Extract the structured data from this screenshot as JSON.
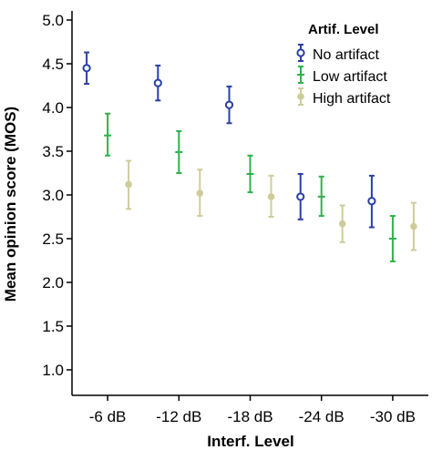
{
  "chart_data": {
    "type": "scatter",
    "title": "",
    "xlabel": "Interf. Level",
    "ylabel": "Mean opinion score (MOS)",
    "categories": [
      "-6 dB",
      "-12 dB",
      "-18 dB",
      "-24 dB",
      "-30 dB"
    ],
    "ylim": [
      0.9,
      5.0
    ],
    "yticks": [
      "1.0",
      "1.5",
      "2.0",
      "2.5",
      "3.0",
      "3.5",
      "4.0",
      "4.5",
      "5.0"
    ],
    "grid": false,
    "legend": {
      "title": "Artif. Level",
      "position": "top-right"
    },
    "series": [
      {
        "name": "No artifact",
        "color": "#2a3fa8",
        "marker": "circle-open",
        "values": [
          4.45,
          4.28,
          4.03,
          2.98,
          2.93
        ],
        "ci_low": [
          4.27,
          4.08,
          3.82,
          2.72,
          2.63
        ],
        "ci_high": [
          4.63,
          4.48,
          4.24,
          3.24,
          3.22
        ]
      },
      {
        "name": "Low artifact",
        "color": "#2db34a",
        "marker": "dash",
        "values": [
          3.68,
          3.49,
          3.24,
          2.98,
          2.5
        ],
        "ci_low": [
          3.45,
          3.25,
          3.03,
          2.76,
          2.24
        ],
        "ci_high": [
          3.93,
          3.73,
          3.45,
          3.21,
          2.76
        ]
      },
      {
        "name": "High artifact",
        "color": "#cfcc9a",
        "marker": "circle-filled",
        "values": [
          3.12,
          3.02,
          2.98,
          2.67,
          2.64
        ],
        "ci_low": [
          2.84,
          2.76,
          2.75,
          2.46,
          2.37
        ],
        "ci_high": [
          3.39,
          3.29,
          3.22,
          2.88,
          2.91
        ]
      }
    ]
  }
}
